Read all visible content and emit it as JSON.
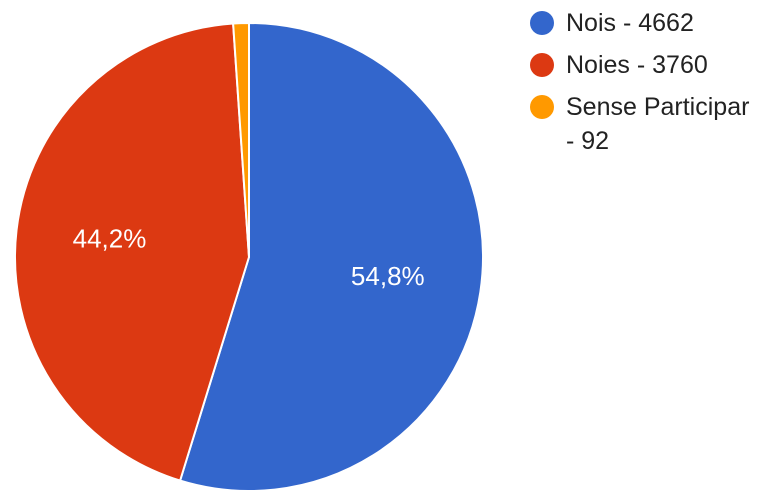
{
  "chart_data": {
    "type": "pie",
    "title": "",
    "slices": [
      {
        "label": "Nois - 4662",
        "value": 4662,
        "percent_label": "54,8%",
        "color": "#3366cc"
      },
      {
        "label": "Noies - 3760",
        "value": 3760,
        "percent_label": "44,2%",
        "color": "#dc3912"
      },
      {
        "label": "Sense Participar - 92",
        "value": 92,
        "percent_label": "",
        "color": "#ff9900"
      }
    ],
    "legend_position": "right",
    "start_angle": "top",
    "direction": "clockwise"
  }
}
